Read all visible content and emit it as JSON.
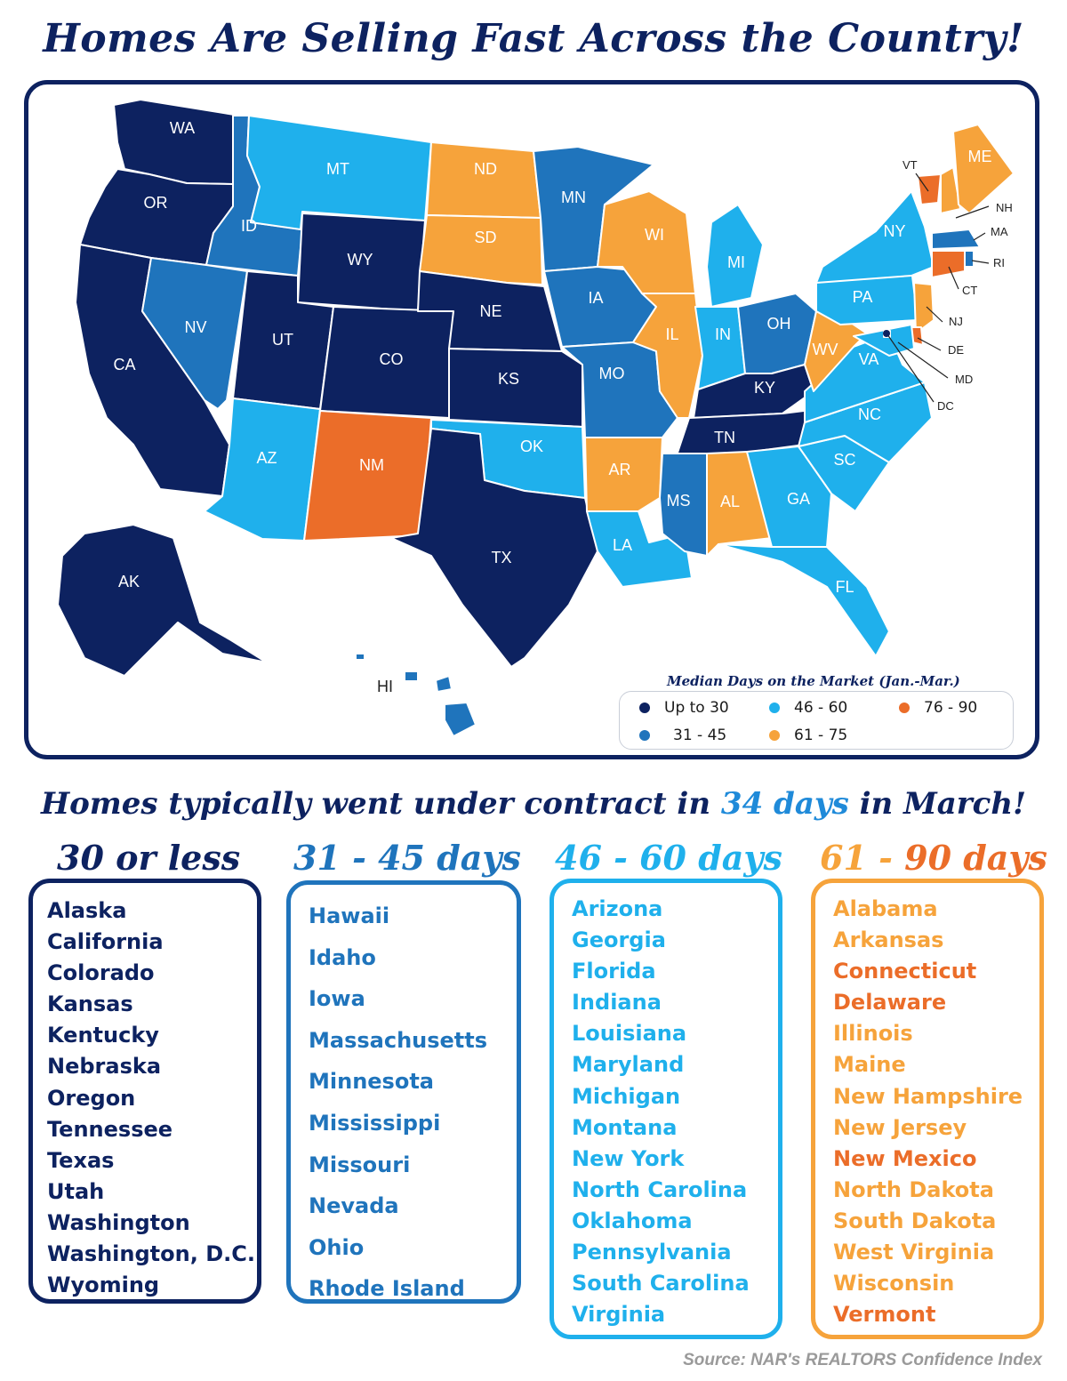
{
  "title": "Homes Are Selling Fast Across the Country!",
  "colors": {
    "navy": "#0d2260",
    "mid_blue": "#1f74bc",
    "light_blue": "#1fb0ec",
    "orange_light": "#f6a33b",
    "orange_dark": "#eb6d29"
  },
  "legend": {
    "title": "Median Days on the Market (Jan.-Mar.)",
    "items": [
      {
        "label": "Up to 30",
        "color": "#0d2260"
      },
      {
        "label": "31 - 45",
        "color": "#1f74bc"
      },
      {
        "label": "46 - 60",
        "color": "#1fb0ec"
      },
      {
        "label": "61 - 75",
        "color": "#f6a33b"
      },
      {
        "label": "76 - 90",
        "color": "#eb6d29"
      }
    ]
  },
  "map": {
    "states": [
      {
        "abbr": "WA",
        "category": "Up to 30"
      },
      {
        "abbr": "OR",
        "category": "Up to 30"
      },
      {
        "abbr": "CA",
        "category": "Up to 30"
      },
      {
        "abbr": "ID",
        "category": "31 - 45"
      },
      {
        "abbr": "NV",
        "category": "31 - 45"
      },
      {
        "abbr": "MT",
        "category": "46 - 60"
      },
      {
        "abbr": "WY",
        "category": "Up to 30"
      },
      {
        "abbr": "UT",
        "category": "Up to 30"
      },
      {
        "abbr": "CO",
        "category": "Up to 30"
      },
      {
        "abbr": "AZ",
        "category": "46 - 60"
      },
      {
        "abbr": "NM",
        "category": "76 - 90"
      },
      {
        "abbr": "ND",
        "category": "61 - 75"
      },
      {
        "abbr": "SD",
        "category": "61 - 75"
      },
      {
        "abbr": "NE",
        "category": "Up to 30"
      },
      {
        "abbr": "KS",
        "category": "Up to 30"
      },
      {
        "abbr": "OK",
        "category": "46 - 60"
      },
      {
        "abbr": "TX",
        "category": "Up to 30"
      },
      {
        "abbr": "MN",
        "category": "31 - 45"
      },
      {
        "abbr": "IA",
        "category": "31 - 45"
      },
      {
        "abbr": "MO",
        "category": "31 - 45"
      },
      {
        "abbr": "AR",
        "category": "61 - 75"
      },
      {
        "abbr": "LA",
        "category": "46 - 60"
      },
      {
        "abbr": "WI",
        "category": "61 - 75"
      },
      {
        "abbr": "IL",
        "category": "61 - 75"
      },
      {
        "abbr": "MI",
        "category": "46 - 60"
      },
      {
        "abbr": "IN",
        "category": "46 - 60"
      },
      {
        "abbr": "OH",
        "category": "31 - 45"
      },
      {
        "abbr": "KY",
        "category": "Up to 30"
      },
      {
        "abbr": "TN",
        "category": "Up to 30"
      },
      {
        "abbr": "MS",
        "category": "31 - 45"
      },
      {
        "abbr": "AL",
        "category": "61 - 75"
      },
      {
        "abbr": "GA",
        "category": "46 - 60"
      },
      {
        "abbr": "FL",
        "category": "46 - 60"
      },
      {
        "abbr": "SC",
        "category": "46 - 60"
      },
      {
        "abbr": "NC",
        "category": "46 - 60"
      },
      {
        "abbr": "VA",
        "category": "46 - 60"
      },
      {
        "abbr": "WV",
        "category": "61 - 75"
      },
      {
        "abbr": "PA",
        "category": "46 - 60"
      },
      {
        "abbr": "NY",
        "category": "46 - 60"
      },
      {
        "abbr": "VT",
        "category": "76 - 90"
      },
      {
        "abbr": "NH",
        "category": "61 - 75"
      },
      {
        "abbr": "ME",
        "category": "61 - 75"
      },
      {
        "abbr": "MA",
        "category": "31 - 45"
      },
      {
        "abbr": "RI",
        "category": "31 - 45"
      },
      {
        "abbr": "CT",
        "category": "76 - 90"
      },
      {
        "abbr": "NJ",
        "category": "61 - 75"
      },
      {
        "abbr": "DE",
        "category": "76 - 90"
      },
      {
        "abbr": "MD",
        "category": "46 - 60"
      },
      {
        "abbr": "DC",
        "category": "Up to 30"
      },
      {
        "abbr": "AK",
        "category": "Up to 30"
      },
      {
        "abbr": "HI",
        "category": "31 - 45"
      }
    ]
  },
  "subtitle": {
    "before": "Homes typically went under contract in ",
    "highlight": "34 days",
    "after": " in March!"
  },
  "columns": [
    {
      "heading": "30 or less",
      "color": "#0d2260",
      "states": [
        "Alaska",
        "California",
        "Colorado",
        "Kansas",
        "Kentucky",
        "Nebraska",
        "Oregon",
        "Tennessee",
        "Texas",
        "Utah",
        "Washington",
        "Washington, D.C.",
        "Wyoming"
      ]
    },
    {
      "heading": "31 - 45 days",
      "color": "#1f74bc",
      "states": [
        "Hawaii",
        "Idaho",
        "Iowa",
        "Massachusetts",
        "Minnesota",
        "Mississippi",
        "Missouri",
        "Nevada",
        "Ohio",
        "Rhode Island"
      ]
    },
    {
      "heading": "46 - 60 days",
      "color": "#1fb0ec",
      "states": [
        "Arizona",
        "Georgia",
        "Florida",
        "Indiana",
        "Louisiana",
        "Maryland",
        "Michigan",
        "Montana",
        "New York",
        "North Carolina",
        "Oklahoma",
        "Pennsylvania",
        "South Carolina",
        "Virginia"
      ]
    },
    {
      "heading_a": "61 - ",
      "heading_b": "90 days",
      "color_a": "#f6a33b",
      "color_b": "#eb6d29",
      "states": [
        {
          "name": "Alabama",
          "color": "#f6a33b"
        },
        {
          "name": "Arkansas",
          "color": "#f6a33b"
        },
        {
          "name": "Connecticut",
          "color": "#eb6d29"
        },
        {
          "name": "Delaware",
          "color": "#eb6d29"
        },
        {
          "name": "Illinois",
          "color": "#f6a33b"
        },
        {
          "name": "Maine",
          "color": "#f6a33b"
        },
        {
          "name": "New Hampshire",
          "color": "#f6a33b"
        },
        {
          "name": "New Jersey",
          "color": "#f6a33b"
        },
        {
          "name": "New Mexico",
          "color": "#eb6d29"
        },
        {
          "name": "North Dakota",
          "color": "#f6a33b"
        },
        {
          "name": "South Dakota",
          "color": "#f6a33b"
        },
        {
          "name": "West Virginia",
          "color": "#f6a33b"
        },
        {
          "name": "Wisconsin",
          "color": "#f6a33b"
        },
        {
          "name": "Vermont",
          "color": "#eb6d29"
        }
      ]
    }
  ],
  "source": "Source: NAR's REALTORS Confidence Index"
}
